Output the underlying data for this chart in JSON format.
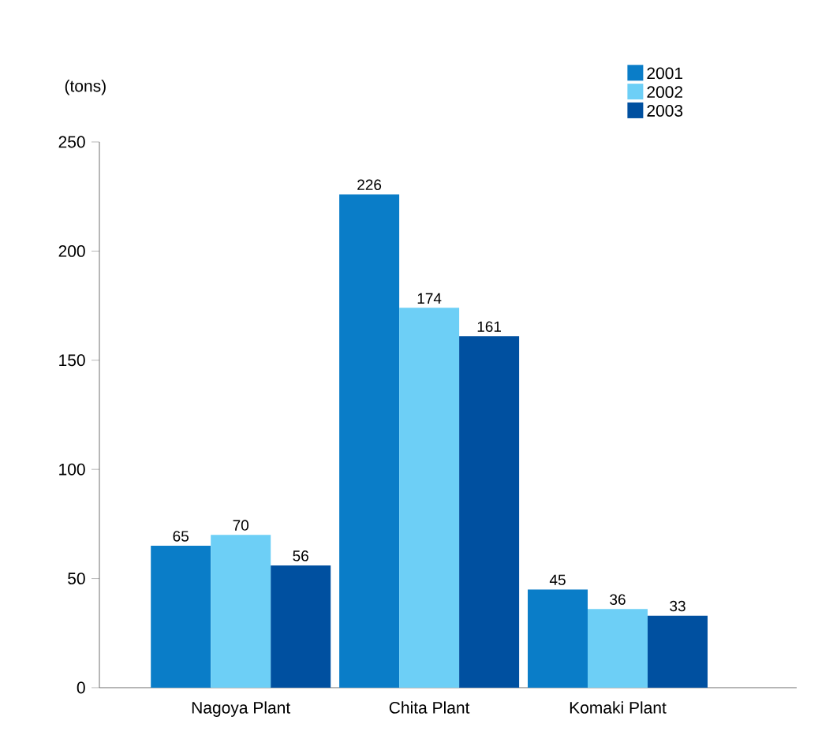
{
  "chart_data": {
    "type": "bar",
    "ylabel": "(tons)",
    "categories": [
      "Nagoya Plant",
      "Chita Plant",
      "Komaki Plant"
    ],
    "series": [
      {
        "name": "2001",
        "color": "#0a7dc8",
        "values": [
          65,
          226,
          45
        ]
      },
      {
        "name": "2002",
        "color": "#6dcff6",
        "values": [
          70,
          174,
          36
        ]
      },
      {
        "name": "2003",
        "color": "#0050a0",
        "values": [
          56,
          161,
          33
        ]
      }
    ],
    "ylim": [
      0,
      250
    ],
    "yticks": [
      0,
      50,
      100,
      150,
      200,
      250
    ],
    "data_labels": true,
    "legend": "top right",
    "grid": false
  }
}
